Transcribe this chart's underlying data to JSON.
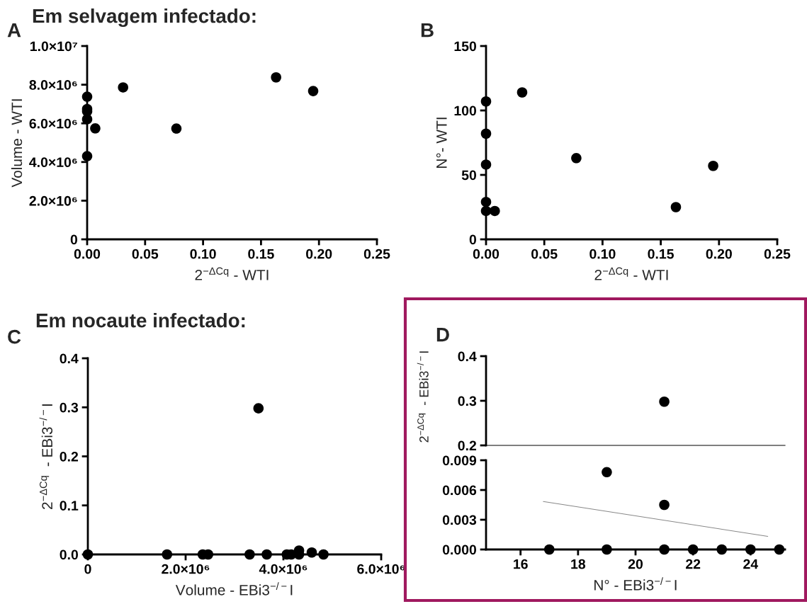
{
  "chart_data": [
    {
      "type": "scatter",
      "title": "Em selvagem infectado:",
      "annotations": [
        "A"
      ],
      "xlabel": "2$^{−ΔCq}$ - WTI",
      "ylabel": "Volume - WTI",
      "marker": "circle",
      "grid": false,
      "legend": false,
      "xlim": [
        0,
        0.25
      ],
      "xticks": [
        {
          "value": 0,
          "label": "0.00"
        },
        0.05,
        {
          "value": 0.1,
          "label": "0.10"
        },
        0.15,
        {
          "value": 0.2,
          "label": "0.20"
        },
        0.25
      ],
      "ylim": [
        0,
        10000000
      ],
      "yticks": [
        0,
        {
          "value": 2000000,
          "label": "2.0×10⁶"
        },
        {
          "value": 4000000,
          "label": "4.0×10⁶"
        },
        {
          "value": 6000000,
          "label": "6.0×10⁶"
        },
        {
          "value": 8000000,
          "label": "8.0×10⁶"
        },
        {
          "value": 10000000,
          "label": "1.0×10⁷"
        }
      ],
      "series": [
        {
          "color": "#000000",
          "x": [
            0,
            0,
            0,
            0,
            0.007,
            0,
            0.031,
            0.077,
            0.163,
            0.195
          ],
          "values": [
            7380000,
            6740000,
            6620000,
            6210000,
            5740000,
            4300000,
            7860000,
            5730000,
            8380000,
            7670000
          ]
        }
      ]
    },
    {
      "type": "scatter",
      "annotations": [
        "B"
      ],
      "xlabel": "2$^{−ΔCq}$ - WTI",
      "ylabel": "N°- WTI",
      "marker": "circle",
      "grid": false,
      "legend": false,
      "xlim": [
        0,
        0.25
      ],
      "xticks": [
        {
          "value": 0,
          "label": "0.00"
        },
        0.05,
        {
          "value": 0.1,
          "label": "0.10"
        },
        0.15,
        {
          "value": 0.2,
          "label": "0.20"
        },
        0.25
      ],
      "ylim": [
        0,
        150
      ],
      "yticks": [
        0,
        50,
        100,
        150
      ],
      "series": [
        {
          "color": "#000000",
          "x": [
            0,
            0,
            0,
            0,
            0,
            0.0075,
            0.031,
            0.0775,
            0.163,
            0.195
          ],
          "values": [
            107,
            82,
            58,
            29,
            22,
            22,
            114,
            63,
            25,
            57
          ]
        }
      ]
    },
    {
      "type": "scatter",
      "title": "Em nocaute infectado:",
      "annotations": [
        "C"
      ],
      "xlabel": "Volume - EBi3$^{−/−}$I",
      "ylabel": "2$^{−ΔCq}$  - EBi3$^{−/−}$I",
      "marker": "circle",
      "grid": false,
      "legend": false,
      "xlim": [
        0,
        6000000
      ],
      "xticks": [
        0,
        {
          "value": 2000000,
          "label": "2.0×10⁶"
        },
        {
          "value": 4000000,
          "label": "4.0×10⁶"
        },
        {
          "value": 6000000,
          "label": "6.0×10⁶"
        }
      ],
      "ylim": [
        0,
        0.4
      ],
      "yticks": [
        {
          "value": 0,
          "label": "0.0"
        },
        0.1,
        0.2,
        0.3,
        0.4
      ],
      "series": [
        {
          "color": "#000000",
          "x": [
            0,
            1620000,
            2350000,
            2460000,
            3310000,
            3490000,
            3660000,
            4070000,
            4160000,
            4320000,
            4320000,
            4580000,
            4820000
          ],
          "values": [
            0,
            0,
            0,
            0,
            0,
            0.298,
            0,
            0,
            0,
            0.008,
            0,
            0.004,
            0
          ]
        }
      ]
    },
    {
      "type": "scatter",
      "annotations": [
        "D"
      ],
      "marker": "circle",
      "grid": false,
      "legend": false,
      "tick_labels": "y",
      "xlim": [
        14.8,
        25.2
      ],
      "ylim": [
        0.2,
        0.4
      ],
      "yticks": [
        0.2,
        0.3,
        0.4
      ],
      "series": [
        {
          "color": "#000000",
          "x": [
            21
          ],
          "values": [
            0.298
          ]
        }
      ]
    },
    {
      "type": "scatter",
      "xlabel": "N° - EBi3$^{−/−}$I",
      "ylabel": "2$^{−ΔCq}$  - EBi3$^{−/−}$I",
      "marker": "circle",
      "grid": false,
      "legend": false,
      "xlim": [
        14.8,
        25.2
      ],
      "xticks": [
        16,
        18,
        20,
        22,
        24
      ],
      "ylim": [
        0,
        0.009
      ],
      "yticks": [
        {
          "value": 0,
          "label": "0.000"
        },
        {
          "value": 0.003,
          "label": "0.003"
        },
        {
          "value": 0.006,
          "label": "0.006"
        },
        {
          "value": 0.009,
          "label": "0.009"
        }
      ],
      "series": [
        {
          "color": "#000000",
          "x": [
            17,
            19,
            19,
            21,
            21,
            22,
            23,
            24,
            25
          ],
          "values": [
            0,
            0,
            0.0078,
            0.0045,
            0,
            0,
            0,
            0,
            0
          ]
        },
        {
          "type": "line",
          "color": "#888888",
          "line_style": "solid",
          "marker": "none",
          "x": [
            16.79,
            24.6
          ],
          "values": [
            0.00484,
            0.00132
          ]
        }
      ]
    }
  ]
}
